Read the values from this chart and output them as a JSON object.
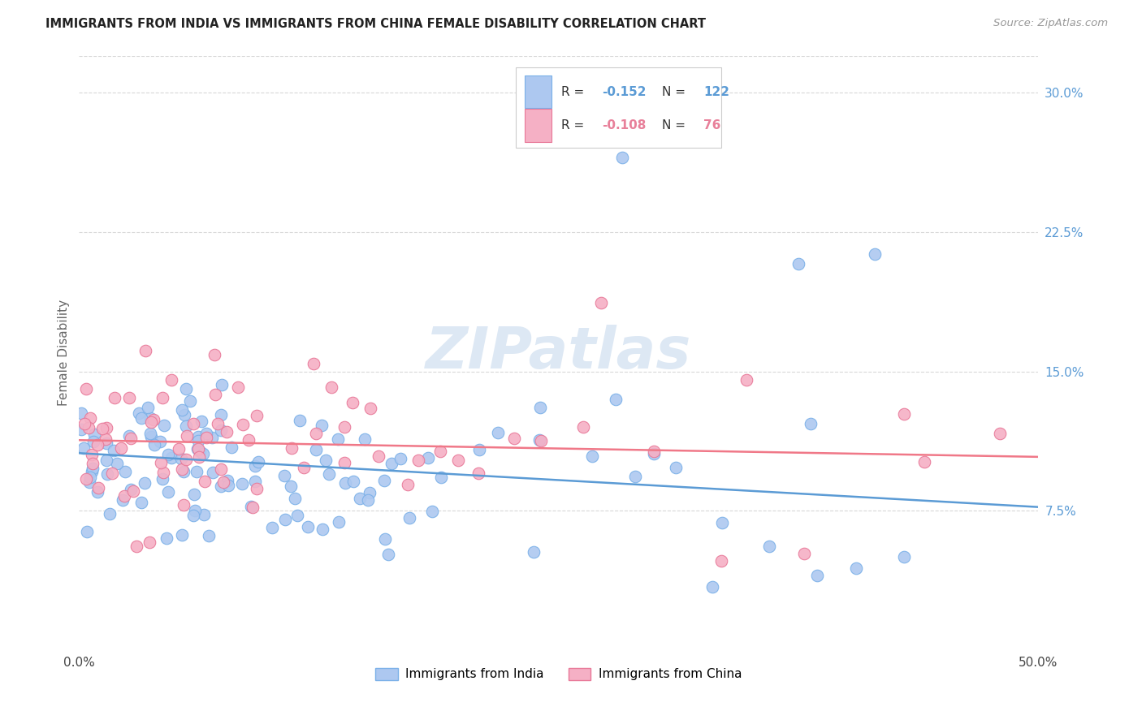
{
  "title": "IMMIGRANTS FROM INDIA VS IMMIGRANTS FROM CHINA FEMALE DISABILITY CORRELATION CHART",
  "source": "Source: ZipAtlas.com",
  "ylabel": "Female Disability",
  "india_color": "#adc8f0",
  "india_edge": "#7ab0e8",
  "china_color": "#f5b0c5",
  "china_edge": "#e87898",
  "india_line_color": "#5b9bd5",
  "china_line_color": "#f07888",
  "india_R": -0.152,
  "india_N": 122,
  "china_R": -0.108,
  "china_N": 76,
  "india_intercept": 0.106,
  "india_slope": -0.058,
  "china_intercept": 0.113,
  "china_slope": -0.018,
  "xlim": [
    0.0,
    0.5
  ],
  "ylim": [
    0.0,
    0.32
  ],
  "ytick_vals": [
    0.075,
    0.15,
    0.225,
    0.3
  ],
  "ytick_labels": [
    "7.5%",
    "15.0%",
    "22.5%",
    "30.0%"
  ],
  "xtick_labels": [
    "0.0%",
    "50.0%"
  ],
  "watermark": "ZIPatlas",
  "legend_label_india": "Immigrants from India",
  "legend_label_china": "Immigrants from China"
}
